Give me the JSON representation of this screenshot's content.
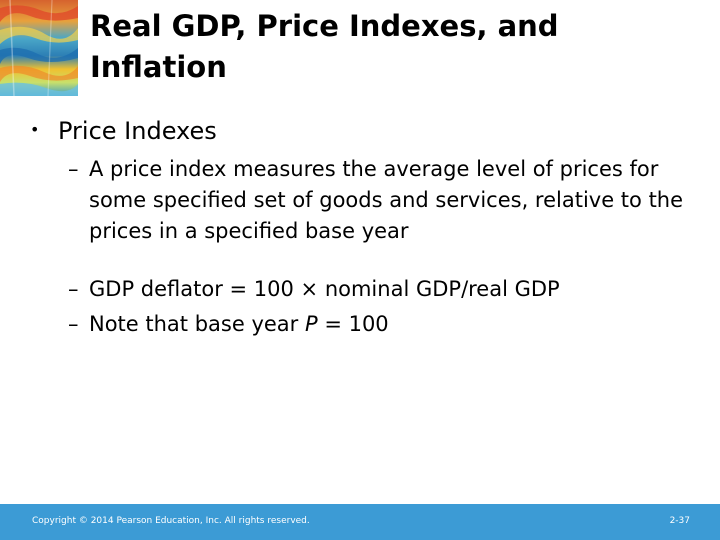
{
  "slide": {
    "title": "Real GDP, Price Indexes, and Inflation",
    "bullet": {
      "marker": "•",
      "label": "Price Indexes"
    },
    "subitems": [
      {
        "dash": "–",
        "text": "A price index measures the average level of prices for some specified set of goods and services, relative to the prices in a specified base year"
      },
      {
        "dash": "–",
        "text": "GDP deflator = 100 × nominal GDP/real GDP"
      },
      {
        "dash": "–",
        "text_before": "Note that base year ",
        "text_italic": "P",
        "text_after": " = 100"
      }
    ],
    "decoration_icon": "painted-landscape-thumbnail"
  },
  "footer": {
    "copyright": "Copyright © 2014 Pearson Education, Inc. All rights reserved.",
    "page_number": "2-37",
    "bar_color": "#3c9bd5"
  }
}
